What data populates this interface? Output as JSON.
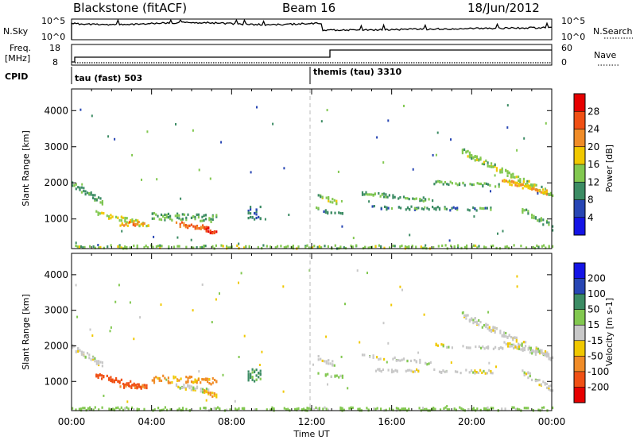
{
  "header": {
    "station": "Blackstone (fitACF)",
    "beam": "Beam 16",
    "date": "18/Jun/2012"
  },
  "sky_panel": {
    "left_label": "N.Sky",
    "right_label": "N.Search",
    "left_ticks": [
      "10^5",
      "10^0"
    ],
    "right_ticks": [
      "10^5",
      "10^0"
    ]
  },
  "freq_panel": {
    "left_label_line1": "Freq.",
    "left_label_line2": "[MHz]",
    "right_label": "Nave",
    "left_ticks": [
      "18",
      "8"
    ],
    "right_ticks": [
      "60",
      "0"
    ]
  },
  "cpid": {
    "label": "CPID",
    "segments": [
      {
        "start_hour": 0.0,
        "text": "tau (fast) 503"
      },
      {
        "start_hour": 12.0,
        "text": "themis (tau) 3310"
      }
    ]
  },
  "chart_data": [
    {
      "type": "heatmap",
      "panel": "power",
      "ylabel": "Slant Range [km]",
      "yticks": [
        1000,
        2000,
        3000,
        4000
      ],
      "ylim": [
        180,
        4600
      ],
      "xlim_hours": [
        0,
        24
      ],
      "colorbar_label": "Power [dB]",
      "colorbar_ticks": [
        "4",
        "8",
        "12",
        "16",
        "20",
        "24",
        "28"
      ],
      "colorbar_colors": [
        "#1414e6",
        "#2846b4",
        "#3c8c64",
        "#82c850",
        "#f0c800",
        "#f08c28",
        "#f05014",
        "#e60000"
      ],
      "features": [
        {
          "h0": 0.0,
          "h1": 1.5,
          "r0": 2000,
          "r1": 1500,
          "w": 160,
          "dens": 0.55,
          "val": 11
        },
        {
          "h0": 1.2,
          "h1": 3.8,
          "r0": 1200,
          "r1": 850,
          "w": 140,
          "dens": 0.5,
          "val": 16
        },
        {
          "h0": 2.4,
          "h1": 3.6,
          "r0": 900,
          "r1": 900,
          "w": 110,
          "dens": 0.6,
          "val": 22
        },
        {
          "h0": 4.0,
          "h1": 7.2,
          "r0": 1100,
          "r1": 1050,
          "w": 200,
          "dens": 0.45,
          "val": 12
        },
        {
          "h0": 5.2,
          "h1": 6.8,
          "r0": 900,
          "r1": 780,
          "w": 140,
          "dens": 0.65,
          "val": 24
        },
        {
          "h0": 6.6,
          "h1": 7.2,
          "r0": 780,
          "r1": 620,
          "w": 130,
          "dens": 0.8,
          "val": 29
        },
        {
          "h0": 8.8,
          "h1": 9.4,
          "r0": 1200,
          "r1": 1200,
          "w": 350,
          "dens": 0.4,
          "val": 9
        },
        {
          "h0": 12.3,
          "h1": 13.2,
          "r0": 1700,
          "r1": 1500,
          "w": 120,
          "dens": 0.5,
          "val": 14
        },
        {
          "h0": 12.2,
          "h1": 13.5,
          "r0": 1300,
          "r1": 1150,
          "w": 100,
          "dens": 0.35,
          "val": 10
        },
        {
          "h0": 14.5,
          "h1": 18.0,
          "r0": 1750,
          "r1": 1550,
          "w": 100,
          "dens": 0.45,
          "val": 12
        },
        {
          "h0": 15.0,
          "h1": 21.0,
          "r0": 1350,
          "r1": 1300,
          "w": 90,
          "dens": 0.4,
          "val": 10
        },
        {
          "h0": 18.0,
          "h1": 21.5,
          "r0": 2050,
          "r1": 1950,
          "w": 90,
          "dens": 0.45,
          "val": 13
        },
        {
          "h0": 19.5,
          "h1": 24.0,
          "r0": 2900,
          "r1": 1700,
          "w": 170,
          "dens": 0.55,
          "val": 14
        },
        {
          "h0": 21.5,
          "h1": 23.8,
          "r0": 2100,
          "r1": 1750,
          "w": 120,
          "dens": 0.6,
          "val": 20
        },
        {
          "h0": 22.5,
          "h1": 24.0,
          "r0": 1300,
          "r1": 800,
          "w": 180,
          "dens": 0.45,
          "val": 13
        },
        {
          "h0": 0.0,
          "h1": 24.0,
          "r0": 260,
          "r1": 260,
          "w": 90,
          "dens": 0.35,
          "val": 14
        }
      ]
    },
    {
      "type": "heatmap",
      "panel": "velocity",
      "ylabel": "Slant Range [km]",
      "yticks": [
        1000,
        2000,
        3000,
        4000
      ],
      "ylim": [
        180,
        4600
      ],
      "xlim_hours": [
        0,
        24
      ],
      "xticks": [
        "00:00",
        "04:00",
        "08:00",
        "12:00",
        "16:00",
        "20:00",
        "00:00"
      ],
      "xlabel": "Time UT",
      "colorbar_label": "Velocity [m s-1]",
      "colorbar_ticks": [
        "-200",
        "-100",
        "-50",
        "-15",
        "15",
        "50",
        "100",
        "200"
      ],
      "colorbar_colors": [
        "#e60000",
        "#f05014",
        "#f08c28",
        "#f0c800",
        "#c8c8c8",
        "#82c850",
        "#3c8c64",
        "#2846b4",
        "#1414e6"
      ],
      "features": [
        {
          "h0": 0.0,
          "h1": 1.5,
          "r0": 2000,
          "r1": 1500,
          "w": 160,
          "dens": 0.55,
          "val": 0
        },
        {
          "h0": 1.2,
          "h1": 3.8,
          "r0": 1200,
          "r1": 850,
          "w": 140,
          "dens": 0.5,
          "val": -150
        },
        {
          "h0": 2.4,
          "h1": 3.6,
          "r0": 900,
          "r1": 900,
          "w": 110,
          "dens": 0.6,
          "val": -110
        },
        {
          "h0": 4.0,
          "h1": 7.2,
          "r0": 1100,
          "r1": 1050,
          "w": 200,
          "dens": 0.45,
          "val": -60
        },
        {
          "h0": 5.2,
          "h1": 6.8,
          "r0": 900,
          "r1": 780,
          "w": 140,
          "dens": 0.65,
          "val": 0
        },
        {
          "h0": 6.6,
          "h1": 7.2,
          "r0": 780,
          "r1": 620,
          "w": 130,
          "dens": 0.8,
          "val": -40
        },
        {
          "h0": 8.8,
          "h1": 9.4,
          "r0": 1200,
          "r1": 1200,
          "w": 350,
          "dens": 0.4,
          "val": 60
        },
        {
          "h0": 12.3,
          "h1": 13.2,
          "r0": 1700,
          "r1": 1500,
          "w": 120,
          "dens": 0.5,
          "val": 0
        },
        {
          "h0": 12.2,
          "h1": 13.5,
          "r0": 1300,
          "r1": 1150,
          "w": 100,
          "dens": 0.35,
          "val": 30
        },
        {
          "h0": 14.5,
          "h1": 18.0,
          "r0": 1750,
          "r1": 1550,
          "w": 100,
          "dens": 0.45,
          "val": 0
        },
        {
          "h0": 15.0,
          "h1": 21.0,
          "r0": 1350,
          "r1": 1300,
          "w": 90,
          "dens": 0.4,
          "val": 0
        },
        {
          "h0": 18.0,
          "h1": 21.5,
          "r0": 2050,
          "r1": 1950,
          "w": 90,
          "dens": 0.45,
          "val": 0
        },
        {
          "h0": 19.5,
          "h1": 24.0,
          "r0": 2900,
          "r1": 1700,
          "w": 170,
          "dens": 0.55,
          "val": 0
        },
        {
          "h0": 21.5,
          "h1": 23.8,
          "r0": 2100,
          "r1": 1750,
          "w": 120,
          "dens": 0.6,
          "val": 0
        },
        {
          "h0": 22.5,
          "h1": 24.0,
          "r0": 1300,
          "r1": 800,
          "w": 180,
          "dens": 0.45,
          "val": 0
        },
        {
          "h0": 0.0,
          "h1": 24.0,
          "r0": 260,
          "r1": 260,
          "w": 90,
          "dens": 0.35,
          "val": 30
        }
      ]
    }
  ]
}
